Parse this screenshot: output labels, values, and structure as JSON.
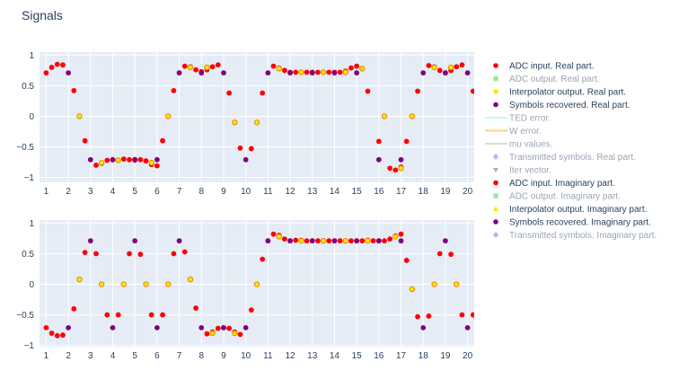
{
  "title": "Signals",
  "colors": {
    "plot_bg": "#e5ecf6",
    "grid": "#ffffff",
    "text": "#2a3f5f",
    "muted_text": "#9aa4b4",
    "adc_input": "#ff0000",
    "adc_output": "#33cc33",
    "interp": "#ffe600",
    "interp_edge": "#e08a00",
    "symbols": "#800080",
    "transmitted": "#6b6bff",
    "ted": "#7fffd4",
    "w_error": "#ffa500",
    "mu": "#d2b48c",
    "iter": "#556b2f"
  },
  "legend": [
    {
      "label": "ADC input. Real part.",
      "marker": "circle",
      "color_key": "adc_input",
      "visible": true
    },
    {
      "label": "ADC output. Real part.",
      "marker": "square",
      "color_key": "adc_output",
      "visible": false
    },
    {
      "label": "Interpolator output. Real part.",
      "marker": "circle",
      "color_key": "interp",
      "visible": true
    },
    {
      "label": "Symbols recovered. Real part.",
      "marker": "circle",
      "color_key": "symbols",
      "visible": true
    },
    {
      "label": "TED error.",
      "marker": "line",
      "color_key": "ted",
      "visible": false
    },
    {
      "label": "W error.",
      "marker": "line",
      "color_key": "w_error",
      "visible": false
    },
    {
      "label": "mu values.",
      "marker": "line",
      "color_key": "mu",
      "visible": false
    },
    {
      "label": "Transmitted symbols. Real part.",
      "marker": "diamond",
      "color_key": "transmitted",
      "visible": false
    },
    {
      "label": "Iter vector.",
      "marker": "triangle-down",
      "color_key": "iter",
      "visible": false
    },
    {
      "label": "ADC input. Imaginary part.",
      "marker": "circle",
      "color_key": "adc_input",
      "visible": true
    },
    {
      "label": "ADC output. Imaginary part.",
      "marker": "square",
      "color_key": "adc_output",
      "visible": false
    },
    {
      "label": "Interpolator output. Imaginary part.",
      "marker": "triangle-up",
      "color_key": "interp",
      "visible": true
    },
    {
      "label": "Symbols recovered. Imaginary part.",
      "marker": "circle",
      "color_key": "symbols",
      "visible": true
    },
    {
      "label": "Transmitted symbols. Imaginary part.",
      "marker": "diamond",
      "color_key": "transmitted",
      "visible": false
    }
  ],
  "chart_data": [
    {
      "type": "scatter",
      "title": "",
      "xlim": [
        0.7,
        20.3
      ],
      "ylim": [
        -1.08,
        1.05
      ],
      "x_ticks": [
        1,
        2,
        3,
        4,
        5,
        6,
        7,
        8,
        9,
        10,
        11,
        12,
        13,
        14,
        15,
        16,
        17,
        18,
        19,
        20
      ],
      "y_ticks": [
        1,
        0.5,
        0,
        -0.5,
        -1
      ],
      "y_tick_labels": [
        "1",
        "0.5",
        "0",
        "−0.5",
        "−1"
      ],
      "grid": true,
      "series": [
        {
          "name": "ADC input. Real part.",
          "marker": "circle",
          "color_key": "adc_input",
          "points": [
            [
              1.0,
              0.71
            ],
            [
              1.25,
              0.8
            ],
            [
              1.5,
              0.85
            ],
            [
              1.75,
              0.84
            ],
            [
              2.25,
              0.42
            ],
            [
              2.75,
              -0.4
            ],
            [
              3.25,
              -0.8
            ],
            [
              3.5,
              -0.77
            ],
            [
              3.75,
              -0.72
            ],
            [
              4.0,
              -0.71
            ],
            [
              4.25,
              -0.72
            ],
            [
              4.5,
              -0.7
            ],
            [
              4.75,
              -0.71
            ],
            [
              5.0,
              -0.72
            ],
            [
              5.25,
              -0.71
            ],
            [
              5.5,
              -0.73
            ],
            [
              5.75,
              -0.79
            ],
            [
              6.0,
              -0.81
            ],
            [
              6.25,
              -0.4
            ],
            [
              6.75,
              0.42
            ],
            [
              7.25,
              0.82
            ],
            [
              7.5,
              0.81
            ],
            [
              7.75,
              0.76
            ],
            [
              8.0,
              0.73
            ],
            [
              8.25,
              0.76
            ],
            [
              8.5,
              0.81
            ],
            [
              8.75,
              0.84
            ],
            [
              9.25,
              0.38
            ],
            [
              9.75,
              -0.52
            ],
            [
              10.25,
              -0.53
            ],
            [
              10.75,
              0.38
            ],
            [
              11.25,
              0.82
            ],
            [
              11.5,
              0.79
            ],
            [
              11.75,
              0.75
            ],
            [
              12.0,
              0.72
            ],
            [
              12.25,
              0.72
            ],
            [
              12.5,
              0.72
            ],
            [
              12.75,
              0.72
            ],
            [
              13.0,
              0.72
            ],
            [
              13.25,
              0.72
            ],
            [
              13.5,
              0.72
            ],
            [
              13.75,
              0.72
            ],
            [
              14.0,
              0.72
            ],
            [
              14.25,
              0.72
            ],
            [
              14.5,
              0.74
            ],
            [
              14.75,
              0.79
            ],
            [
              15.0,
              0.82
            ],
            [
              15.5,
              0.41
            ],
            [
              16.0,
              -0.41
            ],
            [
              16.5,
              -0.85
            ],
            [
              16.75,
              -0.88
            ],
            [
              17.0,
              -0.83
            ],
            [
              17.25,
              -0.41
            ],
            [
              17.75,
              0.41
            ],
            [
              18.25,
              0.83
            ],
            [
              18.5,
              0.81
            ],
            [
              18.75,
              0.75
            ],
            [
              19.0,
              0.71
            ],
            [
              19.25,
              0.75
            ],
            [
              19.5,
              0.81
            ],
            [
              19.75,
              0.84
            ],
            [
              20.25,
              0.41
            ]
          ]
        },
        {
          "name": "Interpolator output. Real part.",
          "marker": "circle",
          "color_key": "interp",
          "points": [
            [
              2.5,
              0.0
            ],
            [
              3.5,
              -0.76
            ],
            [
              4.25,
              -0.72
            ],
            [
              5.0,
              -0.71
            ],
            [
              5.75,
              -0.76
            ],
            [
              6.5,
              0.0
            ],
            [
              7.5,
              0.8
            ],
            [
              8.25,
              0.8
            ],
            [
              9.5,
              -0.1
            ],
            [
              10.5,
              -0.1
            ],
            [
              11.5,
              0.78
            ],
            [
              12.5,
              0.72
            ],
            [
              13.5,
              0.72
            ],
            [
              14.5,
              0.72
            ],
            [
              15.25,
              0.78
            ],
            [
              16.25,
              0.0
            ],
            [
              17.0,
              -0.85
            ],
            [
              17.5,
              0.0
            ],
            [
              18.5,
              0.8
            ],
            [
              19.25,
              0.8
            ]
          ]
        },
        {
          "name": "Symbols recovered. Real part.",
          "marker": "circle",
          "color_key": "symbols",
          "points": [
            [
              2.0,
              0.71
            ],
            [
              3.0,
              -0.71
            ],
            [
              4.0,
              -0.71
            ],
            [
              5.0,
              -0.71
            ],
            [
              6.0,
              -0.71
            ],
            [
              7.0,
              0.71
            ],
            [
              8.0,
              0.71
            ],
            [
              9.0,
              0.71
            ],
            [
              10.0,
              -0.71
            ],
            [
              11.0,
              0.71
            ],
            [
              12.0,
              0.71
            ],
            [
              13.0,
              0.71
            ],
            [
              14.0,
              0.71
            ],
            [
              15.0,
              0.71
            ],
            [
              16.0,
              -0.71
            ],
            [
              17.0,
              -0.71
            ],
            [
              18.0,
              0.71
            ],
            [
              19.0,
              0.71
            ],
            [
              20.0,
              0.71
            ]
          ]
        }
      ]
    },
    {
      "type": "scatter",
      "title": "",
      "xlim": [
        0.7,
        20.3
      ],
      "ylim": [
        -1.02,
        1.05
      ],
      "x_ticks": [
        1,
        2,
        3,
        4,
        5,
        6,
        7,
        8,
        9,
        10,
        11,
        12,
        13,
        14,
        15,
        16,
        17,
        18,
        19,
        20
      ],
      "y_ticks": [
        1,
        0.5,
        0,
        -0.5,
        -1
      ],
      "y_tick_labels": [
        "1",
        "0.5",
        "0",
        "−0.5",
        "−1"
      ],
      "grid": true,
      "series": [
        {
          "name": "ADC input. Imaginary part.",
          "marker": "circle",
          "color_key": "adc_input",
          "points": [
            [
              1.0,
              -0.71
            ],
            [
              1.25,
              -0.8
            ],
            [
              1.5,
              -0.84
            ],
            [
              1.75,
              -0.83
            ],
            [
              2.25,
              -0.4
            ],
            [
              2.75,
              0.52
            ],
            [
              3.25,
              0.5
            ],
            [
              3.75,
              -0.5
            ],
            [
              4.25,
              -0.5
            ],
            [
              4.75,
              0.5
            ],
            [
              5.25,
              0.49
            ],
            [
              5.75,
              -0.5
            ],
            [
              6.25,
              -0.5
            ],
            [
              6.75,
              0.5
            ],
            [
              7.25,
              0.53
            ],
            [
              7.75,
              -0.39
            ],
            [
              8.25,
              -0.81
            ],
            [
              8.5,
              -0.78
            ],
            [
              8.75,
              -0.72
            ],
            [
              9.0,
              -0.71
            ],
            [
              9.25,
              -0.72
            ],
            [
              9.5,
              -0.78
            ],
            [
              9.75,
              -0.82
            ],
            [
              10.25,
              -0.42
            ],
            [
              10.75,
              0.41
            ],
            [
              11.25,
              0.82
            ],
            [
              11.5,
              0.8
            ],
            [
              11.75,
              0.74
            ],
            [
              12.0,
              0.71
            ],
            [
              12.25,
              0.72
            ],
            [
              12.5,
              0.72
            ],
            [
              12.75,
              0.71
            ],
            [
              13.0,
              0.71
            ],
            [
              13.25,
              0.71
            ],
            [
              13.5,
              0.71
            ],
            [
              13.75,
              0.71
            ],
            [
              14.0,
              0.71
            ],
            [
              14.25,
              0.71
            ],
            [
              14.5,
              0.71
            ],
            [
              14.75,
              0.71
            ],
            [
              15.0,
              0.71
            ],
            [
              15.25,
              0.71
            ],
            [
              15.5,
              0.72
            ],
            [
              15.75,
              0.71
            ],
            [
              16.0,
              0.71
            ],
            [
              16.25,
              0.71
            ],
            [
              16.5,
              0.74
            ],
            [
              16.75,
              0.79
            ],
            [
              17.0,
              0.82
            ],
            [
              17.25,
              0.39
            ],
            [
              17.75,
              -0.53
            ],
            [
              18.25,
              -0.52
            ],
            [
              18.75,
              0.5
            ],
            [
              19.25,
              0.49
            ],
            [
              19.75,
              -0.5
            ],
            [
              20.25,
              -0.5
            ]
          ]
        },
        {
          "name": "Interpolator output. Imaginary part.",
          "marker": "circle",
          "color_key": "interp",
          "points": [
            [
              2.5,
              0.08
            ],
            [
              3.5,
              0.0
            ],
            [
              4.5,
              0.0
            ],
            [
              5.5,
              0.0
            ],
            [
              6.5,
              0.0
            ],
            [
              7.5,
              0.08
            ],
            [
              8.5,
              -0.8
            ],
            [
              9.5,
              -0.8
            ],
            [
              10.5,
              0.0
            ],
            [
              11.5,
              0.78
            ],
            [
              12.5,
              0.71
            ],
            [
              13.5,
              0.71
            ],
            [
              14.5,
              0.71
            ],
            [
              15.5,
              0.71
            ],
            [
              16.75,
              0.78
            ],
            [
              17.5,
              -0.08
            ],
            [
              18.5,
              0.0
            ],
            [
              19.5,
              0.0
            ],
            [
              20.5,
              -0.08
            ]
          ]
        },
        {
          "name": "Symbols recovered. Imaginary part.",
          "marker": "circle",
          "color_key": "symbols",
          "points": [
            [
              2.0,
              -0.71
            ],
            [
              3.0,
              0.71
            ],
            [
              4.0,
              -0.71
            ],
            [
              5.0,
              0.71
            ],
            [
              6.0,
              -0.71
            ],
            [
              7.0,
              0.71
            ],
            [
              8.0,
              -0.71
            ],
            [
              9.0,
              -0.71
            ],
            [
              10.0,
              -0.71
            ],
            [
              11.0,
              0.71
            ],
            [
              12.0,
              0.71
            ],
            [
              13.0,
              0.71
            ],
            [
              14.0,
              0.71
            ],
            [
              15.0,
              0.71
            ],
            [
              16.0,
              0.71
            ],
            [
              17.0,
              0.71
            ],
            [
              18.0,
              -0.71
            ],
            [
              19.0,
              0.71
            ],
            [
              20.0,
              -0.71
            ]
          ]
        }
      ]
    }
  ]
}
